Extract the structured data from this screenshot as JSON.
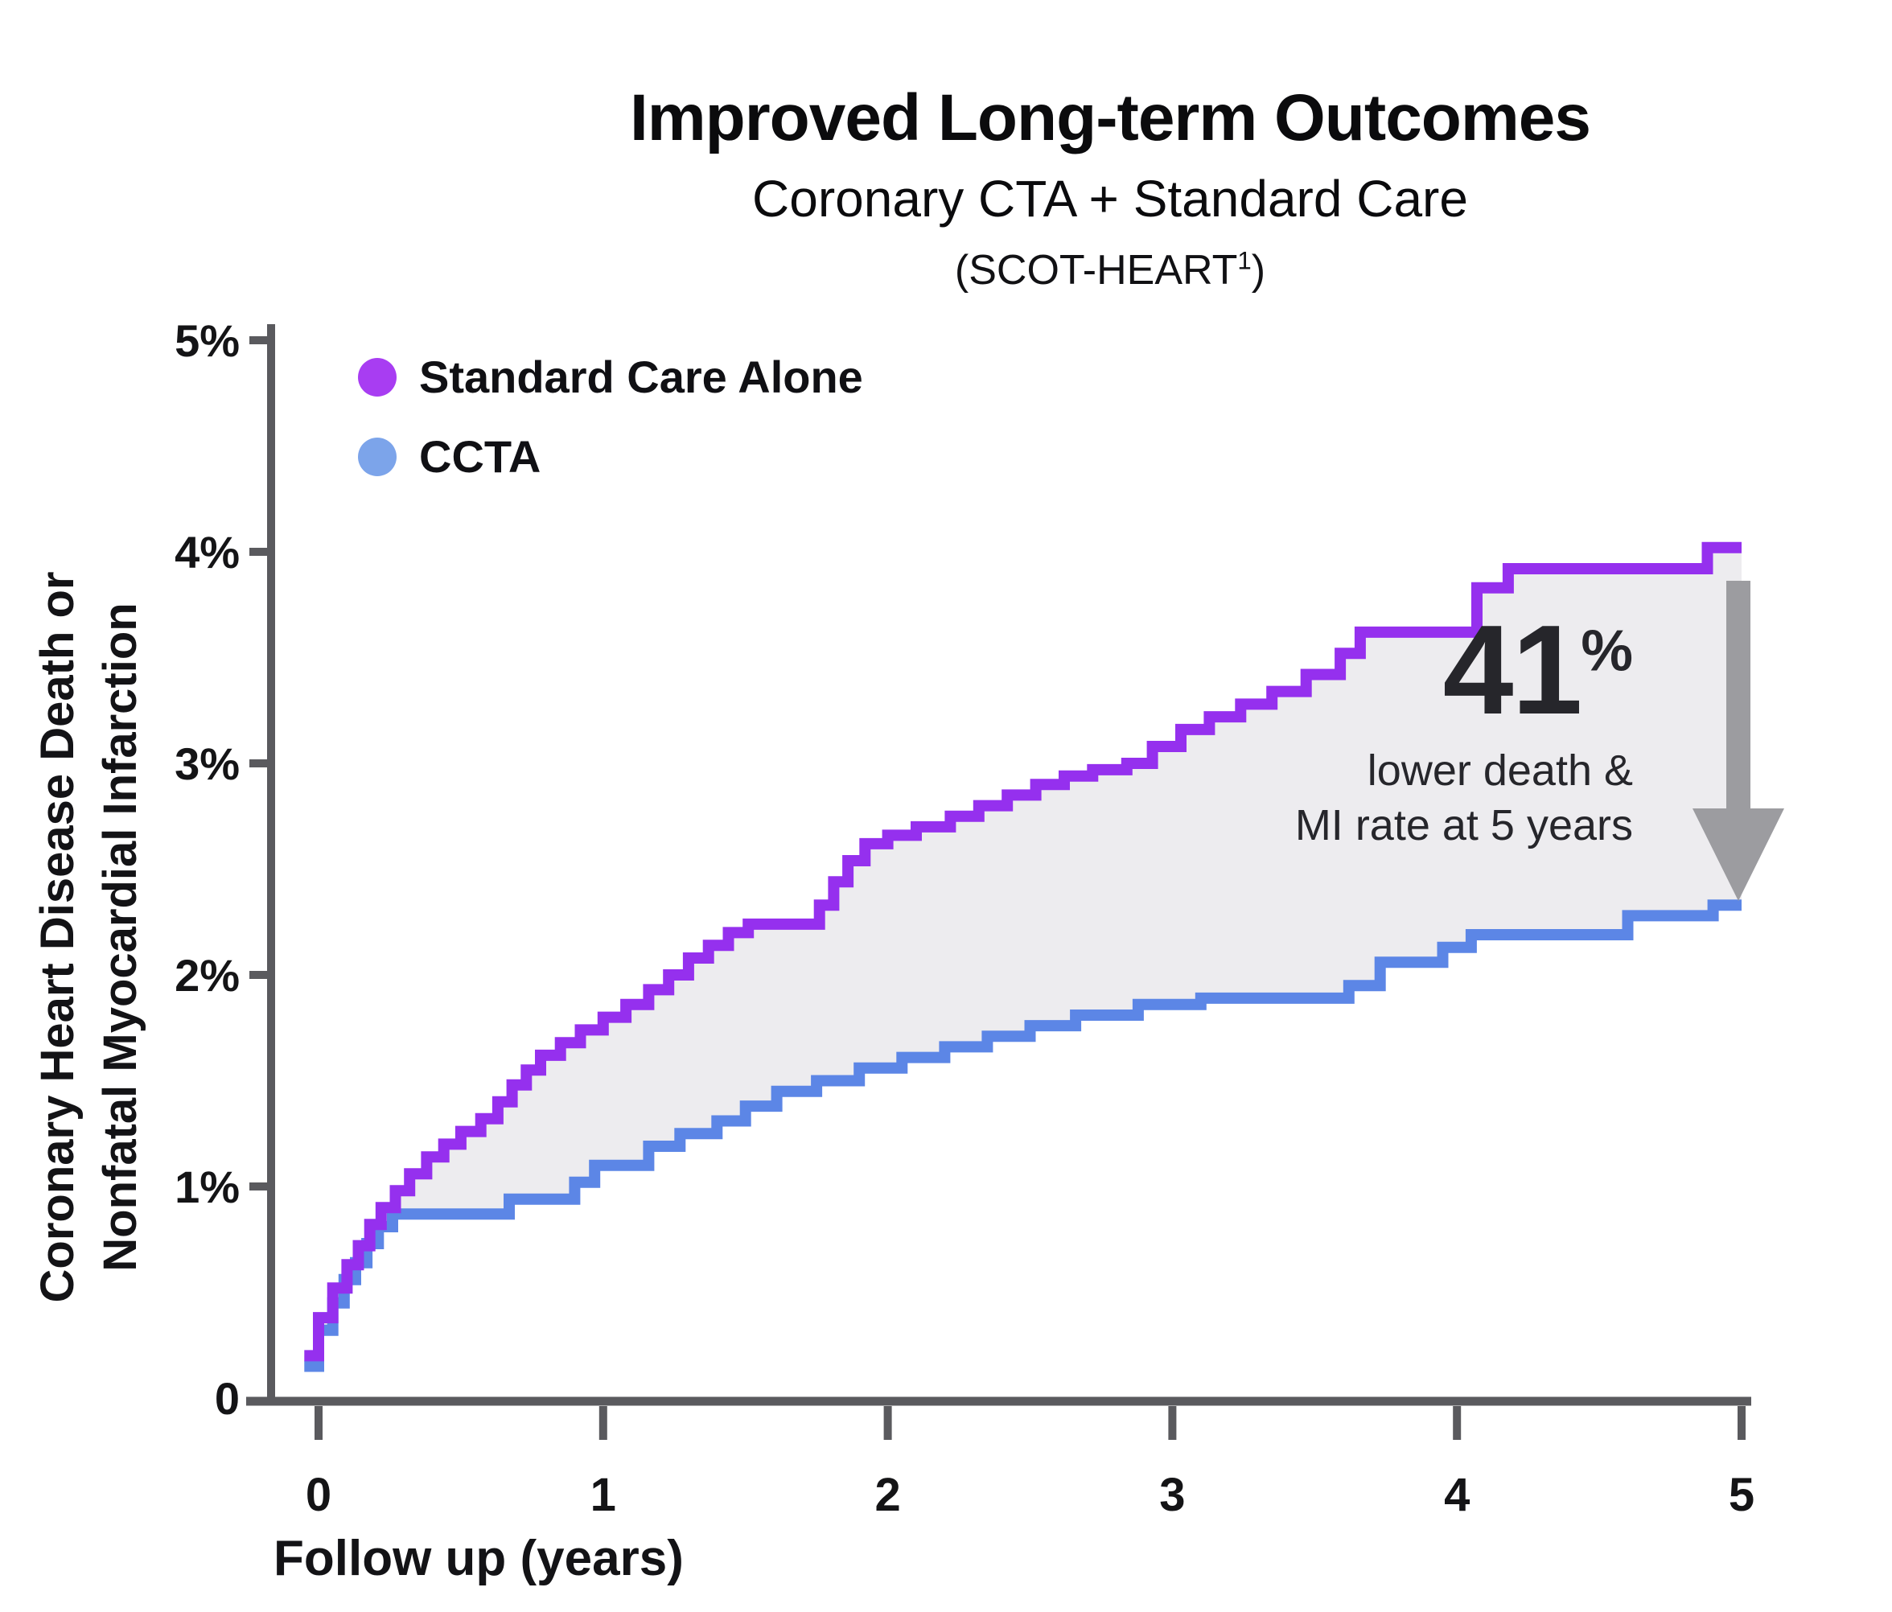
{
  "title": {
    "line1": "Improved Long-term Outcomes",
    "line2": "Coronary CTA + Standard Care",
    "line3_pre": "(SCOT-HEART",
    "line3_sup": "1",
    "line3_post": ")"
  },
  "legend": [
    {
      "label": "Standard Care Alone",
      "color": "#a83df2"
    },
    {
      "label": "CCTA",
      "color": "#7ca4ea"
    }
  ],
  "y_axis": {
    "title_line1": "Coronary Heart Disease Death or",
    "title_line2": "Nonfatal Myocardial Infarction",
    "ticks": [
      {
        "label": "5%",
        "value": 5
      },
      {
        "label": "4%",
        "value": 4
      },
      {
        "label": "3%",
        "value": 3
      },
      {
        "label": "2%",
        "value": 2
      },
      {
        "label": "1%",
        "value": 1
      },
      {
        "label": "0",
        "value": 0
      }
    ]
  },
  "x_axis": {
    "title": "Follow up (years)",
    "ticks": [
      {
        "label": "0",
        "value": 0
      },
      {
        "label": "1",
        "value": 1
      },
      {
        "label": "2",
        "value": 2
      },
      {
        "label": "3",
        "value": 3
      },
      {
        "label": "4",
        "value": 4
      },
      {
        "label": "5",
        "value": 5
      }
    ]
  },
  "annotation": {
    "big": "41",
    "sup": "%",
    "line1": "lower death &",
    "line2": "MI rate at 5 years"
  },
  "chart_data": {
    "type": "line",
    "subtype": "step",
    "title": "Improved Long-term Outcomes — Coronary CTA + Standard Care (SCOT-HEART)",
    "xlabel": "Follow up (years)",
    "ylabel": "Coronary Heart Disease Death or Nonfatal Myocardial Infarction (%)",
    "xlim": [
      0,
      5
    ],
    "ylim": [
      0,
      5
    ],
    "grid": false,
    "legend_position": "top-left",
    "band_fill": "#edecef",
    "series": [
      {
        "name": "Standard Care Alone",
        "color": "#9530ee",
        "points": [
          [
            -0.05,
            0.2
          ],
          [
            0.0,
            0.38
          ],
          [
            0.05,
            0.52
          ],
          [
            0.1,
            0.63
          ],
          [
            0.14,
            0.72
          ],
          [
            0.18,
            0.82
          ],
          [
            0.22,
            0.9
          ],
          [
            0.27,
            0.98
          ],
          [
            0.32,
            1.06
          ],
          [
            0.38,
            1.14
          ],
          [
            0.44,
            1.2
          ],
          [
            0.5,
            1.26
          ],
          [
            0.57,
            1.32
          ],
          [
            0.63,
            1.4
          ],
          [
            0.68,
            1.48
          ],
          [
            0.73,
            1.55
          ],
          [
            0.78,
            1.62
          ],
          [
            0.85,
            1.68
          ],
          [
            0.92,
            1.74
          ],
          [
            1.0,
            1.8
          ],
          [
            1.08,
            1.86
          ],
          [
            1.16,
            1.93
          ],
          [
            1.23,
            2.0
          ],
          [
            1.3,
            2.08
          ],
          [
            1.37,
            2.14
          ],
          [
            1.44,
            2.2
          ],
          [
            1.51,
            2.24
          ],
          [
            1.76,
            2.33
          ],
          [
            1.81,
            2.44
          ],
          [
            1.86,
            2.54
          ],
          [
            1.92,
            2.62
          ],
          [
            2.0,
            2.66
          ],
          [
            2.1,
            2.7
          ],
          [
            2.22,
            2.75
          ],
          [
            2.32,
            2.8
          ],
          [
            2.42,
            2.85
          ],
          [
            2.52,
            2.9
          ],
          [
            2.62,
            2.94
          ],
          [
            2.72,
            2.97
          ],
          [
            2.84,
            3.0
          ],
          [
            2.93,
            3.08
          ],
          [
            3.03,
            3.16
          ],
          [
            3.13,
            3.22
          ],
          [
            3.24,
            3.28
          ],
          [
            3.35,
            3.34
          ],
          [
            3.47,
            3.42
          ],
          [
            3.59,
            3.52
          ],
          [
            3.66,
            3.62
          ],
          [
            4.07,
            3.83
          ],
          [
            4.18,
            3.92
          ],
          [
            4.88,
            4.02
          ],
          [
            5.0,
            4.02
          ]
        ]
      },
      {
        "name": "CCTA",
        "color": "#5c86e6",
        "points": [
          [
            -0.05,
            0.15
          ],
          [
            0.0,
            0.32
          ],
          [
            0.05,
            0.45
          ],
          [
            0.09,
            0.56
          ],
          [
            0.13,
            0.64
          ],
          [
            0.17,
            0.73
          ],
          [
            0.21,
            0.81
          ],
          [
            0.26,
            0.87
          ],
          [
            0.67,
            0.94
          ],
          [
            0.9,
            1.02
          ],
          [
            0.97,
            1.1
          ],
          [
            1.16,
            1.19
          ],
          [
            1.27,
            1.25
          ],
          [
            1.4,
            1.31
          ],
          [
            1.5,
            1.38
          ],
          [
            1.61,
            1.45
          ],
          [
            1.75,
            1.5
          ],
          [
            1.9,
            1.56
          ],
          [
            2.05,
            1.61
          ],
          [
            2.2,
            1.66
          ],
          [
            2.35,
            1.71
          ],
          [
            2.5,
            1.76
          ],
          [
            2.66,
            1.81
          ],
          [
            2.88,
            1.86
          ],
          [
            3.1,
            1.89
          ],
          [
            3.62,
            1.95
          ],
          [
            3.73,
            2.06
          ],
          [
            3.95,
            2.13
          ],
          [
            4.05,
            2.19
          ],
          [
            4.6,
            2.28
          ],
          [
            4.9,
            2.33
          ],
          [
            5.0,
            2.33
          ]
        ]
      }
    ]
  }
}
